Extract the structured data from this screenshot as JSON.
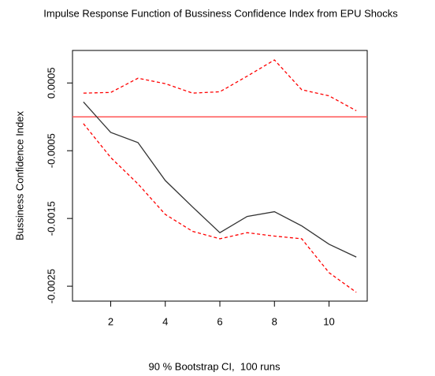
{
  "chart_data": {
    "type": "line",
    "title": "Impulse Response Function of Bussiness Confidence Index from EPU Shocks",
    "xlabel": "90 % Bootstrap CI,  100 runs",
    "ylabel": "Bussiness Confidence Index",
    "x": [
      1,
      2,
      3,
      4,
      5,
      6,
      7,
      8,
      9,
      10,
      11
    ],
    "xlim": [
      0.6,
      11.4
    ],
    "xticks": [
      2,
      4,
      6,
      8,
      10
    ],
    "ylim": [
      -0.00272,
      0.00098
    ],
    "yticks": [
      0.0005,
      -0.0005,
      -0.0015,
      -0.0025
    ],
    "reference_line": 0,
    "reference_color": "#ff5555",
    "series": [
      {
        "color": "#333333",
        "dash": false,
        "values": [
          0.00022,
          -0.00023,
          -0.00038,
          -0.00094,
          -0.00133,
          -0.00171,
          -0.00147,
          -0.0014,
          -0.00161,
          -0.00188,
          -0.00207
        ]
      },
      {
        "color": "#ff0000",
        "dash": true,
        "values": [
          0.00035,
          0.00036,
          0.00057,
          0.00049,
          0.00035,
          0.00037,
          0.0006,
          0.00084,
          0.0004,
          0.00031,
          9e-05
        ]
      },
      {
        "color": "#ff0000",
        "dash": true,
        "values": [
          -0.0001,
          -0.0006,
          -0.00099,
          -0.00144,
          -0.00169,
          -0.0018,
          -0.00171,
          -0.00176,
          -0.0018,
          -0.0023,
          -0.00259
        ]
      }
    ]
  }
}
